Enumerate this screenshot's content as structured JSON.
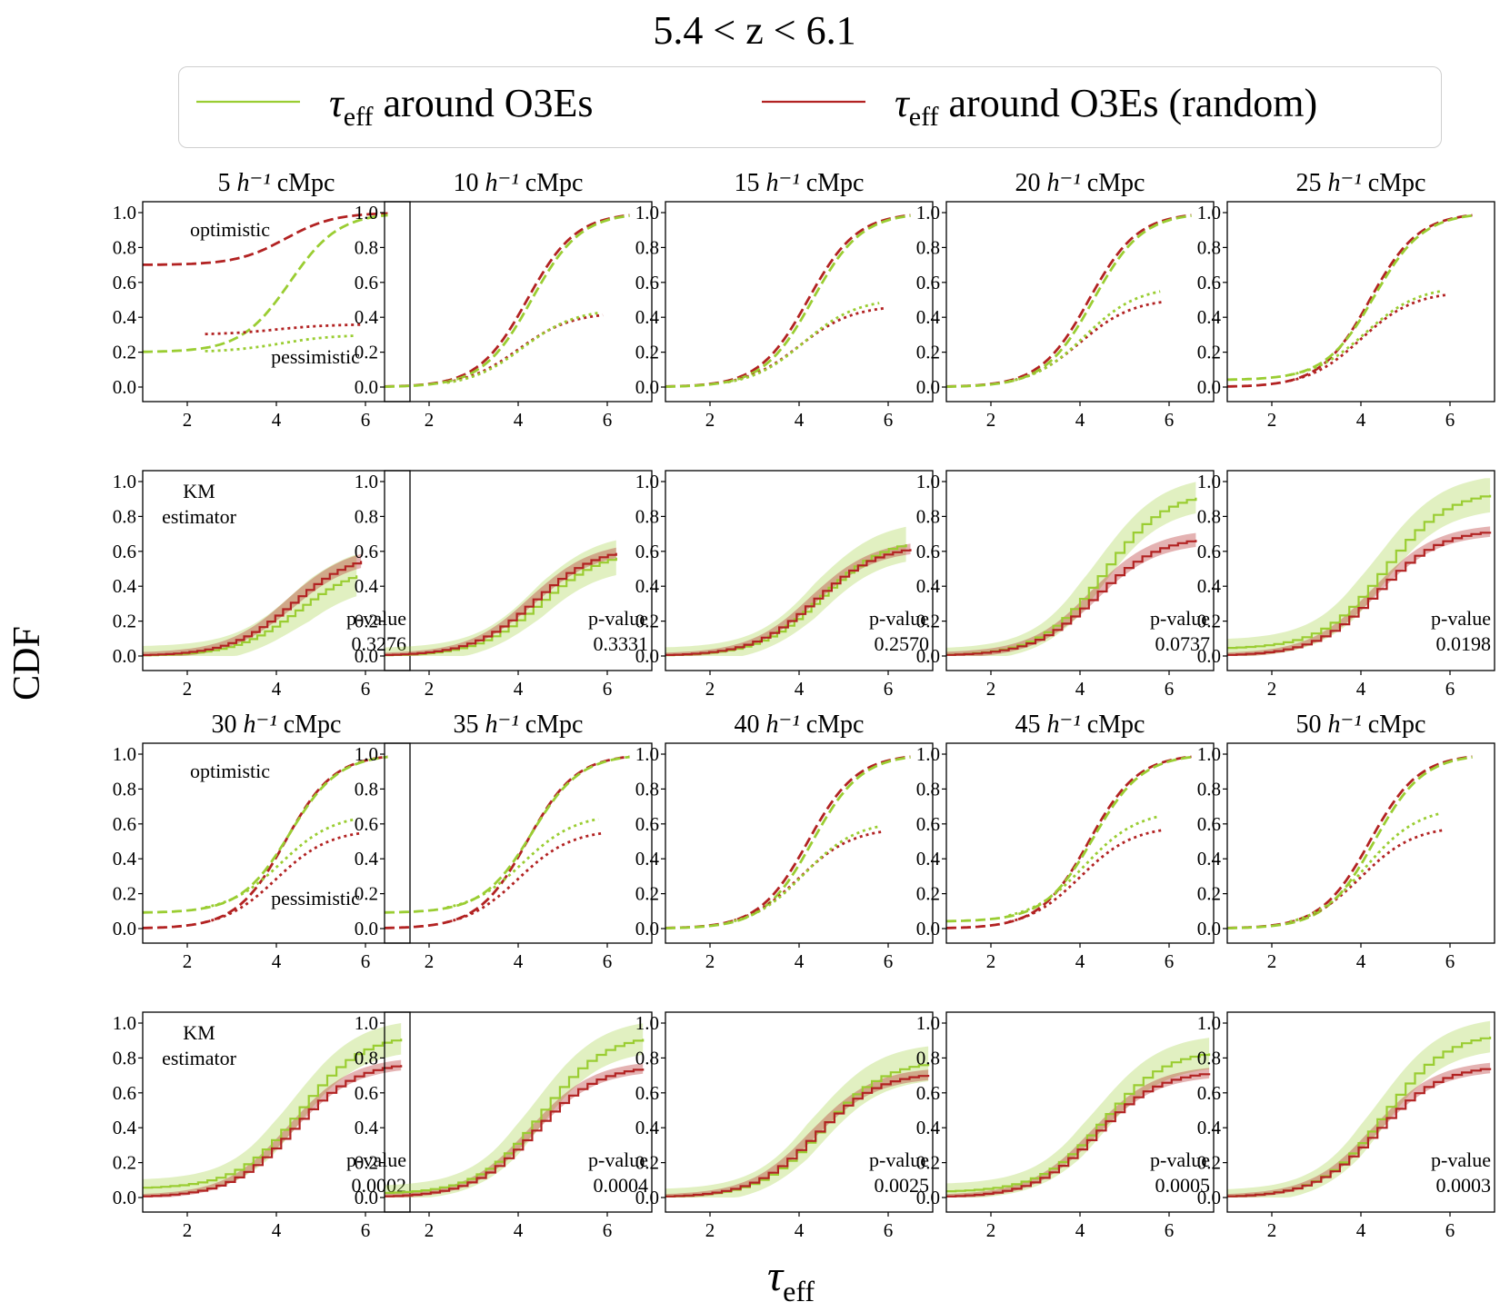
{
  "title": "5.4 < z < 6.1",
  "xlabel": "τeff",
  "ylabel": "CDF",
  "colors": {
    "green": "#9acd32",
    "red": "#b22222"
  },
  "legend": [
    {
      "label": "τeff around O3Es",
      "color": "#9acd32"
    },
    {
      "label": "τeff around O3Es (random)",
      "color": "#b22222"
    }
  ],
  "chart_data": {
    "type": "line",
    "x_ticks": [
      2,
      4,
      6
    ],
    "y_ticks": [
      0.0,
      0.2,
      0.4,
      0.6,
      0.8,
      1.0
    ],
    "y_tick_labels": [
      "0.0",
      "0.2",
      "0.4",
      "0.6",
      "0.8",
      "1.0"
    ],
    "annotations": {
      "optimistic": "optimistic",
      "pessimistic": "pessimistic",
      "km": [
        "KM",
        "estimator"
      ],
      "pvalue": "p-value"
    },
    "panels": [
      {
        "title": "5 h⁻¹ cMpc",
        "row": 0,
        "col": 0,
        "kind": "bounds",
        "xlim": [
          1,
          7
        ],
        "pess": [
          0.3,
          0.36
        ],
        "optA": [
          0.2,
          0.7
        ],
        "pessA": [
          0.2,
          0.3
        ],
        "show_labels": true
      },
      {
        "title": "10 h⁻¹ cMpc",
        "row": 0,
        "col": 1,
        "kind": "bounds",
        "xlim": [
          1,
          7
        ],
        "pess": [
          0.45,
          0.43
        ],
        "optA": [
          0.0,
          0.0
        ],
        "pessA": [
          0.0,
          0.0
        ]
      },
      {
        "title": "15 h⁻¹ cMpc",
        "row": 0,
        "col": 2,
        "kind": "bounds",
        "xlim": [
          1,
          7
        ],
        "pess": [
          0.51,
          0.47
        ],
        "optA": [
          0.0,
          0.0
        ],
        "pessA": [
          0.0,
          0.0
        ]
      },
      {
        "title": "20 h⁻¹ cMpc",
        "row": 0,
        "col": 3,
        "kind": "bounds",
        "xlim": [
          1,
          7
        ],
        "pess": [
          0.58,
          0.51
        ],
        "optA": [
          0.0,
          0.0
        ],
        "pessA": [
          0.0,
          0.0
        ]
      },
      {
        "title": "25 h⁻¹ cMpc",
        "row": 0,
        "col": 4,
        "kind": "bounds",
        "xlim": [
          1,
          7
        ],
        "pess": [
          0.58,
          0.55
        ],
        "optA": [
          0.04,
          0.0
        ],
        "pessA": [
          0.04,
          0.0
        ]
      },
      {
        "title": "",
        "row": 1,
        "col": 0,
        "kind": "km",
        "xlim": [
          1,
          7
        ],
        "final": [
          0.53,
          0.6
        ],
        "xmax": [
          5.8,
          5.9
        ],
        "floor": [
          0.0,
          0.0
        ],
        "band": [
          0.12,
          0.04
        ],
        "pvalue": "0.3276",
        "show_labels": true
      },
      {
        "title": "",
        "row": 1,
        "col": 1,
        "kind": "km",
        "xlim": [
          1,
          7
        ],
        "final": [
          0.61,
          0.63
        ],
        "xmax": [
          6.2,
          6.2
        ],
        "floor": [
          0.0,
          0.0
        ],
        "band": [
          0.1,
          0.03
        ],
        "pvalue": "0.3331"
      },
      {
        "title": "",
        "row": 1,
        "col": 2,
        "kind": "km",
        "xlim": [
          1,
          7
        ],
        "final": [
          0.68,
          0.64
        ],
        "xmax": [
          6.4,
          6.5
        ],
        "floor": [
          0.0,
          0.0
        ],
        "band": [
          0.1,
          0.03
        ],
        "pvalue": "0.2570"
      },
      {
        "title": "",
        "row": 1,
        "col": 3,
        "kind": "km",
        "xlim": [
          1,
          7
        ],
        "final": [
          0.95,
          0.69
        ],
        "xmax": [
          6.6,
          6.6
        ],
        "floor": [
          0.0,
          0.0
        ],
        "band": [
          0.09,
          0.04
        ],
        "pvalue": "0.0737"
      },
      {
        "title": "",
        "row": 1,
        "col": 4,
        "kind": "km",
        "xlim": [
          1,
          7
        ],
        "final": [
          0.95,
          0.73
        ],
        "xmax": [
          6.9,
          6.9
        ],
        "floor": [
          0.04,
          0.0
        ],
        "band": [
          0.1,
          0.03
        ],
        "pvalue": "0.0198"
      },
      {
        "title": "30 h⁻¹ cMpc",
        "row": 2,
        "col": 0,
        "kind": "bounds",
        "xlim": [
          1,
          7
        ],
        "pess": [
          0.66,
          0.57
        ],
        "optA": [
          0.09,
          0.0
        ],
        "pessA": [
          0.09,
          0.0
        ],
        "show_labels": true
      },
      {
        "title": "35 h⁻¹ cMpc",
        "row": 2,
        "col": 1,
        "kind": "bounds",
        "xlim": [
          1,
          7
        ],
        "pess": [
          0.66,
          0.57
        ],
        "optA": [
          0.09,
          0.0
        ],
        "pessA": [
          0.09,
          0.0
        ]
      },
      {
        "title": "40 h⁻¹ cMpc",
        "row": 2,
        "col": 2,
        "kind": "bounds",
        "xlim": [
          1,
          7
        ],
        "pess": [
          0.62,
          0.58
        ],
        "optA": [
          0.0,
          0.0
        ],
        "pessA": [
          0.0,
          0.0
        ]
      },
      {
        "title": "45 h⁻¹ cMpc",
        "row": 2,
        "col": 3,
        "kind": "bounds",
        "xlim": [
          1,
          7
        ],
        "pess": [
          0.68,
          0.59
        ],
        "optA": [
          0.04,
          0.0
        ],
        "pessA": [
          0.04,
          0.0
        ]
      },
      {
        "title": "50 h⁻¹ cMpc",
        "row": 2,
        "col": 4,
        "kind": "bounds",
        "xlim": [
          1,
          7
        ],
        "pess": [
          0.7,
          0.59
        ],
        "optA": [
          0.0,
          0.0
        ],
        "pessA": [
          0.0,
          0.0
        ]
      },
      {
        "title": "",
        "row": 3,
        "col": 0,
        "kind": "km",
        "xlim": [
          1,
          7
        ],
        "final": [
          0.94,
          0.78
        ],
        "xmax": [
          6.8,
          6.8
        ],
        "floor": [
          0.05,
          0.0
        ],
        "band": [
          0.09,
          0.03
        ],
        "pvalue": "0.0002",
        "show_labels": true
      },
      {
        "title": "",
        "row": 3,
        "col": 1,
        "kind": "km",
        "xlim": [
          1,
          7
        ],
        "final": [
          0.94,
          0.76
        ],
        "xmax": [
          6.8,
          6.8
        ],
        "floor": [
          0.02,
          0.0
        ],
        "band": [
          0.09,
          0.03
        ],
        "pvalue": "0.0004"
      },
      {
        "title": "",
        "row": 3,
        "col": 2,
        "kind": "km",
        "xlim": [
          1,
          7
        ],
        "final": [
          0.79,
          0.72
        ],
        "xmax": [
          6.9,
          6.9
        ],
        "floor": [
          0.0,
          0.0
        ],
        "band": [
          0.1,
          0.03
        ],
        "pvalue": "0.0025"
      },
      {
        "title": "",
        "row": 3,
        "col": 3,
        "kind": "km",
        "xlim": [
          1,
          7
        ],
        "final": [
          0.85,
          0.73
        ],
        "xmax": [
          6.9,
          6.9
        ],
        "floor": [
          0.03,
          0.0
        ],
        "band": [
          0.09,
          0.03
        ],
        "pvalue": "0.0005"
      },
      {
        "title": "",
        "row": 3,
        "col": 4,
        "kind": "km",
        "xlim": [
          1,
          7
        ],
        "final": [
          0.95,
          0.76
        ],
        "xmax": [
          6.9,
          6.9
        ],
        "floor": [
          0.0,
          0.0
        ],
        "band": [
          0.09,
          0.03
        ],
        "pvalue": "0.0003"
      }
    ]
  }
}
